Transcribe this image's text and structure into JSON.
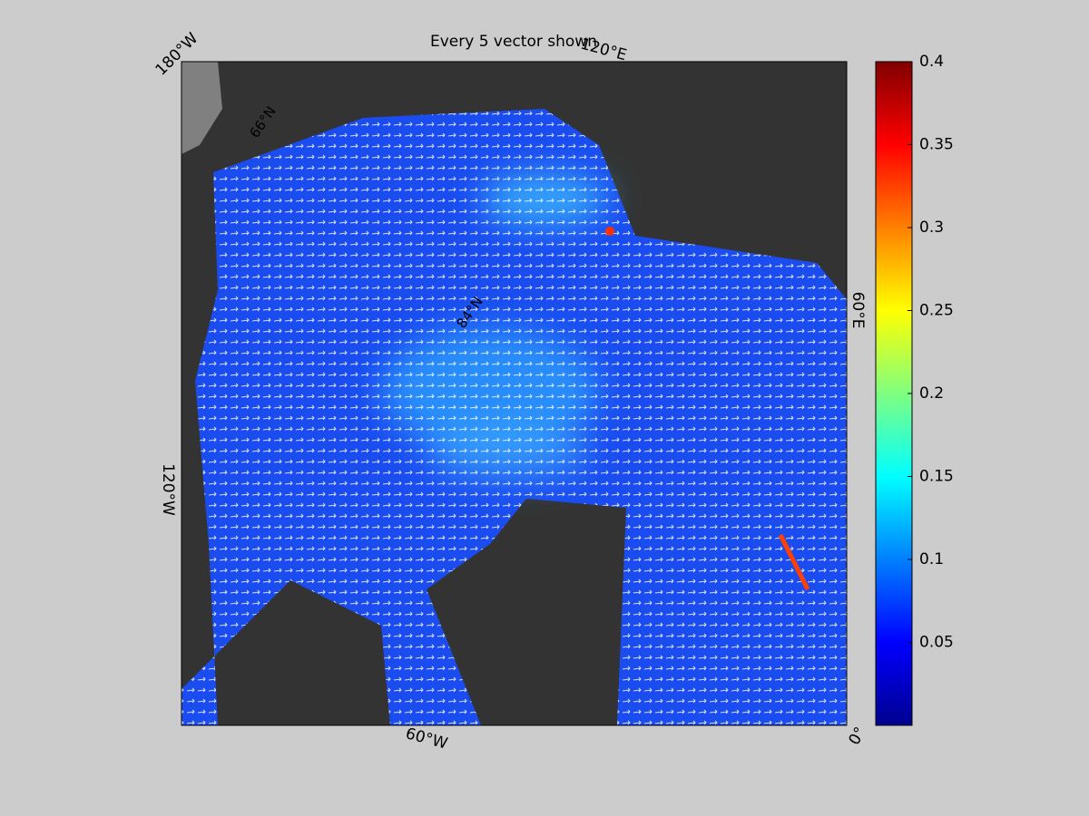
{
  "title": "Every 5 vector shown",
  "longitude_labels": [
    "180°W",
    "120°E",
    "60°E",
    "0°",
    "60°W",
    "120°W"
  ],
  "latitude_labels": [
    "66°N",
    "84°N"
  ],
  "colorbar": {
    "lim": [
      0,
      0.4
    ],
    "ticks": [
      0.05,
      0.1,
      0.15,
      0.2,
      0.25,
      0.3,
      0.35,
      0.4
    ],
    "colormap": [
      "#00008f",
      "#0000ff",
      "#0080ff",
      "#00ffff",
      "#80ff80",
      "#ffff00",
      "#ff8000",
      "#ff0000",
      "#800000"
    ]
  }
}
